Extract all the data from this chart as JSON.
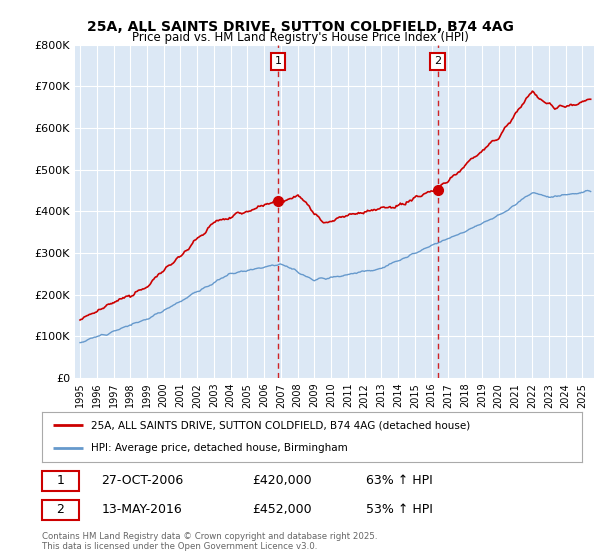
{
  "title": "25A, ALL SAINTS DRIVE, SUTTON COLDFIELD, B74 4AG",
  "subtitle": "Price paid vs. HM Land Registry's House Price Index (HPI)",
  "ylim": [
    0,
    800000
  ],
  "yticks": [
    0,
    100000,
    200000,
    300000,
    400000,
    500000,
    600000,
    700000,
    800000
  ],
  "ytick_labels": [
    "£0",
    "£100K",
    "£200K",
    "£300K",
    "£400K",
    "£500K",
    "£600K",
    "£700K",
    "£800K"
  ],
  "sale1_date": "27-OCT-2006",
  "sale1_price": 420000,
  "sale1_pct": "63% ↑ HPI",
  "sale1_x": 2006.82,
  "sale2_date": "13-MAY-2016",
  "sale2_price": 452000,
  "sale2_pct": "53% ↑ HPI",
  "sale2_x": 2016.37,
  "legend_line1": "25A, ALL SAINTS DRIVE, SUTTON COLDFIELD, B74 4AG (detached house)",
  "legend_line2": "HPI: Average price, detached house, Birmingham",
  "footer": "Contains HM Land Registry data © Crown copyright and database right 2025.\nThis data is licensed under the Open Government Licence v3.0.",
  "red_color": "#cc0000",
  "blue_color": "#6699cc",
  "shade_color": "#dce8f5",
  "grid_color": "#cccccc",
  "plot_bg_color": "#dce8f5"
}
